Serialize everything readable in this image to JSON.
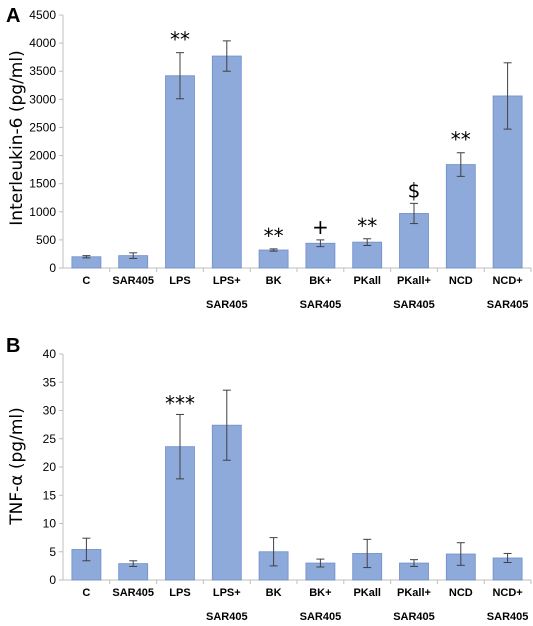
{
  "chart_data": [
    {
      "panel": "A",
      "type": "bar",
      "ylabel": "Interleukin-6 (pg/ml)",
      "ylim": [
        0,
        4500
      ],
      "yticks": [
        0,
        500,
        1000,
        1500,
        2000,
        2500,
        3000,
        3500,
        4000,
        4500
      ],
      "categories": [
        [
          "C"
        ],
        [
          "SAR405"
        ],
        [
          "LPS"
        ],
        [
          "LPS+",
          "SAR405"
        ],
        [
          "BK"
        ],
        [
          "BK+",
          "SAR405"
        ],
        [
          "PKall"
        ],
        [
          "PKall+",
          "SAR405"
        ],
        [
          "NCD"
        ],
        [
          "NCD+",
          "SAR405"
        ]
      ],
      "values": [
        200,
        220,
        3420,
        3770,
        320,
        440,
        460,
        970,
        1840,
        3060
      ],
      "errors": [
        20,
        50,
        410,
        270,
        20,
        60,
        60,
        180,
        210,
        590
      ],
      "annotations": [
        "",
        "",
        "**",
        "",
        "**",
        "+",
        "**",
        "$",
        "**",
        ""
      ],
      "bar_color": "#8eaadb",
      "grid": false
    },
    {
      "panel": "B",
      "type": "bar",
      "ylabel": "TNF-α (pg/ml)",
      "ylim": [
        0,
        40
      ],
      "yticks": [
        0,
        5,
        10,
        15,
        20,
        25,
        30,
        35,
        40
      ],
      "categories": [
        [
          "C"
        ],
        [
          "SAR405"
        ],
        [
          "LPS"
        ],
        [
          "LPS+",
          "SAR405"
        ],
        [
          "BK"
        ],
        [
          "BK+",
          "SAR405"
        ],
        [
          "PKall"
        ],
        [
          "PKall+",
          "SAR405"
        ],
        [
          "NCD"
        ],
        [
          "NCD+",
          "SAR405"
        ]
      ],
      "values": [
        5.4,
        2.9,
        23.6,
        27.4,
        5.0,
        3.0,
        4.7,
        3.0,
        4.6,
        3.9
      ],
      "errors": [
        2.0,
        0.5,
        5.7,
        6.2,
        2.5,
        0.7,
        2.5,
        0.6,
        2.0,
        0.8
      ],
      "annotations": [
        "",
        "",
        "***",
        "",
        "",
        "",
        "",
        "",
        "",
        ""
      ],
      "bar_color": "#8eaadb",
      "grid": false
    }
  ]
}
